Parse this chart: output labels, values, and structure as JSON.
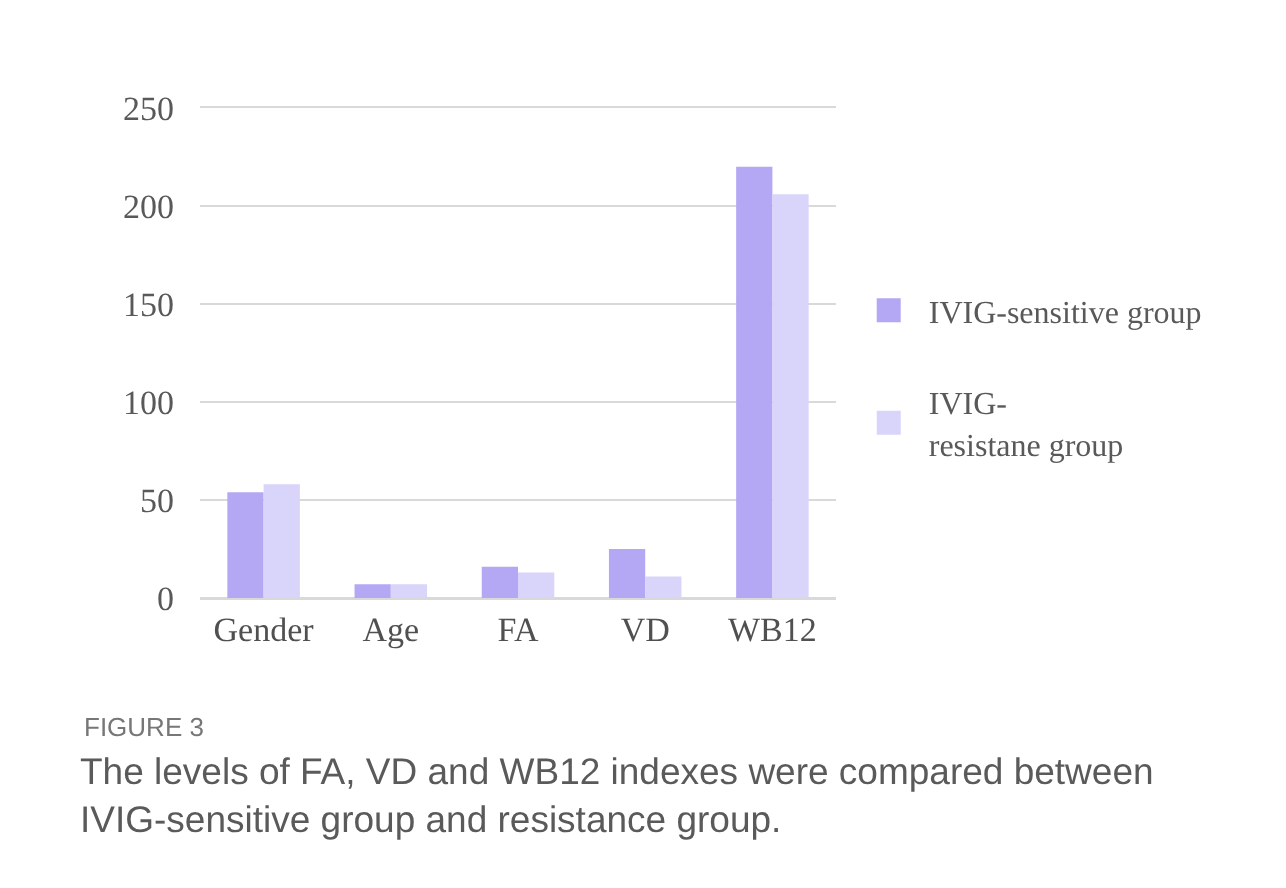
{
  "chart_data": {
    "type": "bar",
    "categories": [
      "Gender",
      "Age",
      "FA",
      "VD",
      "WB12"
    ],
    "series": [
      {
        "name": "IVIG-sensitive group",
        "color": "#b4a8f4",
        "values": [
          54,
          7,
          16,
          25,
          220
        ]
      },
      {
        "name": "IVIG-\nresistane group",
        "color": "#d9d4fa",
        "values": [
          58,
          7,
          13,
          11,
          206
        ]
      }
    ],
    "ylim": [
      0,
      250
    ],
    "yticks": [
      0,
      50,
      100,
      150,
      200,
      250
    ],
    "grid": "y",
    "legend": "right",
    "annotations": [
      "FIGURE 3",
      "The levels of FA, VD and WB12 indexes were compared between IVIG-sensitive group and resistance group."
    ]
  }
}
